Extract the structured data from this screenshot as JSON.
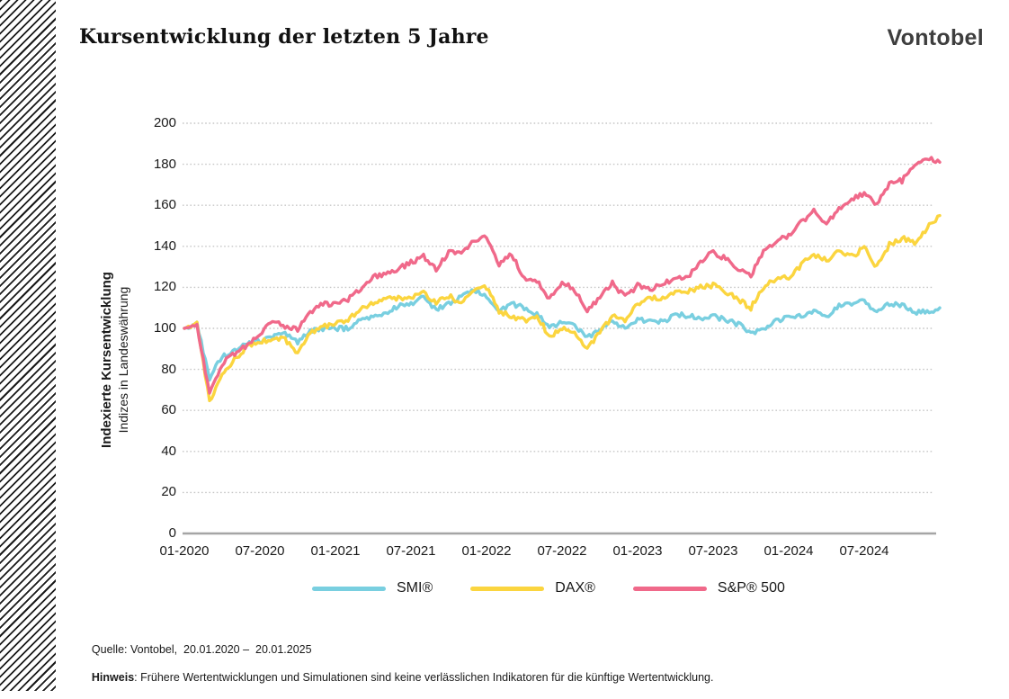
{
  "header": {
    "title": "Kursentwicklung der letzten 5 Jahre",
    "brand": "Vontobel"
  },
  "chart_data": {
    "type": "line",
    "title": "Kursentwicklung der letzten 5 Jahre",
    "ylabel": "Indexierte Kursentwicklung",
    "ylabel_sub": "Indizes in Landeswährung",
    "ylim": [
      0,
      200
    ],
    "yticks": [
      0,
      20,
      40,
      60,
      80,
      100,
      120,
      140,
      160,
      180,
      200
    ],
    "x_unit": "month",
    "x_range": [
      "01-2020",
      "01-2025"
    ],
    "xticks": [
      {
        "index": 0,
        "label": "01-2020"
      },
      {
        "index": 6,
        "label": "07-2020"
      },
      {
        "index": 12,
        "label": "01-2021"
      },
      {
        "index": 18,
        "label": "07-2021"
      },
      {
        "index": 24,
        "label": "01-2022"
      },
      {
        "index": 30,
        "label": "07-2022"
      },
      {
        "index": 36,
        "label": "01-2023"
      },
      {
        "index": 42,
        "label": "07-2023"
      },
      {
        "index": 48,
        "label": "01-2024"
      },
      {
        "index": 54,
        "label": "07-2024"
      }
    ],
    "grid": "horizontal-dotted",
    "grid_color": "#c7c7c7",
    "axis_color": "#a5a5a5",
    "legend_position": "bottom",
    "series": [
      {
        "id": "smi",
        "name": "SMI®",
        "color": "#79CFE0",
        "values": [
          100,
          102,
          76,
          86,
          89,
          93,
          94,
          96,
          97,
          93,
          99,
          100,
          100,
          100,
          104,
          106,
          107,
          111,
          112,
          115,
          109,
          112,
          115,
          119,
          116,
          108,
          112,
          110,
          107,
          100,
          103,
          101,
          95,
          100,
          103,
          100,
          104,
          104,
          103,
          107,
          106,
          105,
          106,
          104,
          102,
          98,
          100,
          104,
          105,
          106,
          109,
          106,
          111,
          112,
          113,
          107,
          112,
          111,
          108,
          108,
          110
        ]
      },
      {
        "id": "dax",
        "name": "DAX®",
        "color": "#FBD53F",
        "values": [
          100,
          102,
          64,
          78,
          85,
          91,
          93,
          95,
          95,
          87,
          98,
          101,
          102,
          104,
          110,
          112,
          114,
          115,
          115,
          117,
          113,
          116,
          112,
          118,
          120,
          108,
          106,
          104,
          106,
          96,
          100,
          97,
          90,
          98,
          106,
          103,
          112,
          115,
          115,
          117,
          118,
          120,
          121,
          118,
          114,
          110,
          120,
          124,
          125,
          131,
          136,
          133,
          138,
          135,
          139,
          130,
          141,
          144,
          142,
          149,
          155
        ]
      },
      {
        "id": "sp500",
        "name": "S&P® 500",
        "color": "#F0698A",
        "values": [
          100,
          102,
          68,
          83,
          88,
          92,
          97,
          104,
          101,
          99,
          108,
          112,
          112,
          114,
          119,
          125,
          126,
          129,
          132,
          135,
          129,
          137,
          137,
          143,
          145,
          131,
          136,
          124,
          123,
          114,
          123,
          119,
          109,
          115,
          122,
          115,
          121,
          119,
          122,
          124,
          125,
          133,
          137,
          134,
          129,
          126,
          137,
          143,
          145,
          152,
          157,
          151,
          158,
          163,
          166,
          160,
          171,
          172,
          179,
          183,
          181
        ]
      }
    ]
  },
  "footer": {
    "line1": "Quelle: Vontobel,  20.01.2020 –  20.01.2025",
    "hinweis_label": "Hinweis",
    "hinweis_rest": ": Frühere Wertentwicklungen und Simulationen sind keine verlässlichen Indikatoren für die künftige Wertentwicklung."
  }
}
